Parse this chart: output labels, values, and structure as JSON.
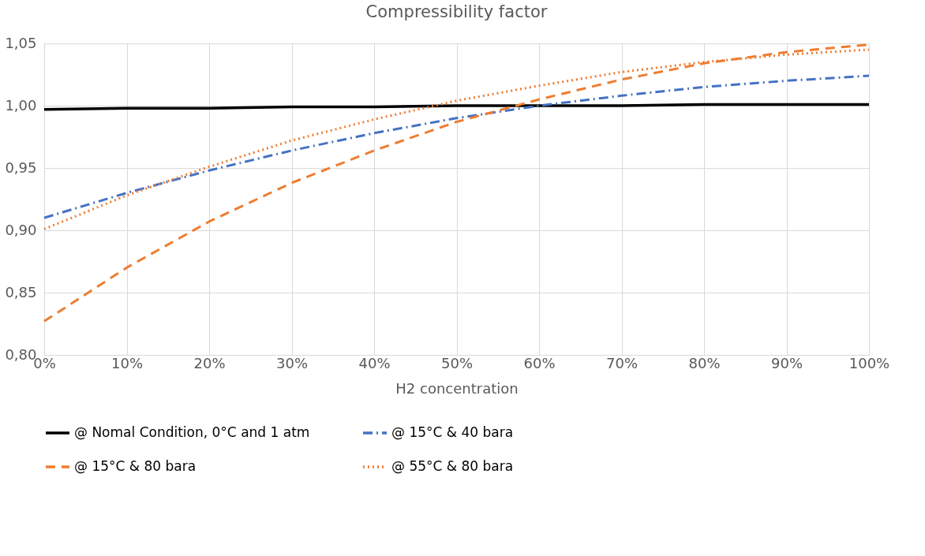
{
  "chart_data": {
    "type": "line",
    "title": "Compressibility factor",
    "xlabel": "H2 concentration",
    "x": [
      0,
      10,
      20,
      30,
      40,
      50,
      60,
      70,
      80,
      90,
      100
    ],
    "xlim": [
      0,
      100
    ],
    "xticks": [
      {
        "value": 0,
        "label": "0%"
      },
      {
        "value": 10,
        "label": "10%"
      },
      {
        "value": 20,
        "label": "20%"
      },
      {
        "value": 30,
        "label": "30%"
      },
      {
        "value": 40,
        "label": "40%"
      },
      {
        "value": 50,
        "label": "50%"
      },
      {
        "value": 60,
        "label": "60%"
      },
      {
        "value": 70,
        "label": "70%"
      },
      {
        "value": 80,
        "label": "80%"
      },
      {
        "value": 90,
        "label": "90%"
      },
      {
        "value": 100,
        "label": "100%"
      }
    ],
    "ylim": [
      0.8,
      1.05
    ],
    "yticks": [
      {
        "value": 0.8,
        "label": "0,80"
      },
      {
        "value": 0.85,
        "label": "0,85"
      },
      {
        "value": 0.9,
        "label": "0,90"
      },
      {
        "value": 0.95,
        "label": "0,95"
      },
      {
        "value": 1.0,
        "label": "1,00"
      },
      {
        "value": 1.05,
        "label": "1,05"
      }
    ],
    "grid": true,
    "legend": "bottom",
    "marker": "none",
    "series": [
      {
        "name": "@ Nomal Condition, 0°C and 1 atm",
        "color": "#000000",
        "line_style": "solid",
        "values": [
          0.997,
          0.998,
          0.998,
          0.999,
          0.999,
          1.0,
          1.0,
          1.0,
          1.001,
          1.001,
          1.001
        ]
      },
      {
        "name": "@ 15°C & 40 bara",
        "color": "#4472c4",
        "line_style": "dashdot",
        "values": [
          0.91,
          0.93,
          0.948,
          0.964,
          0.978,
          0.99,
          1.0,
          1.008,
          1.015,
          1.02,
          1.024
        ]
      },
      {
        "name": "@ 15°C & 80 bara",
        "color": "#ed7d31",
        "line_style": "dashed",
        "values": [
          0.827,
          0.87,
          0.907,
          0.938,
          0.964,
          0.987,
          1.005,
          1.021,
          1.034,
          1.043,
          1.049
        ]
      },
      {
        "name": "@ 55°C & 80 bara",
        "color": "#ed7d31",
        "line_style": "dotted",
        "values": [
          0.901,
          0.928,
          0.951,
          0.972,
          0.989,
          1.004,
          1.016,
          1.027,
          1.035,
          1.041,
          1.045
        ]
      }
    ]
  }
}
